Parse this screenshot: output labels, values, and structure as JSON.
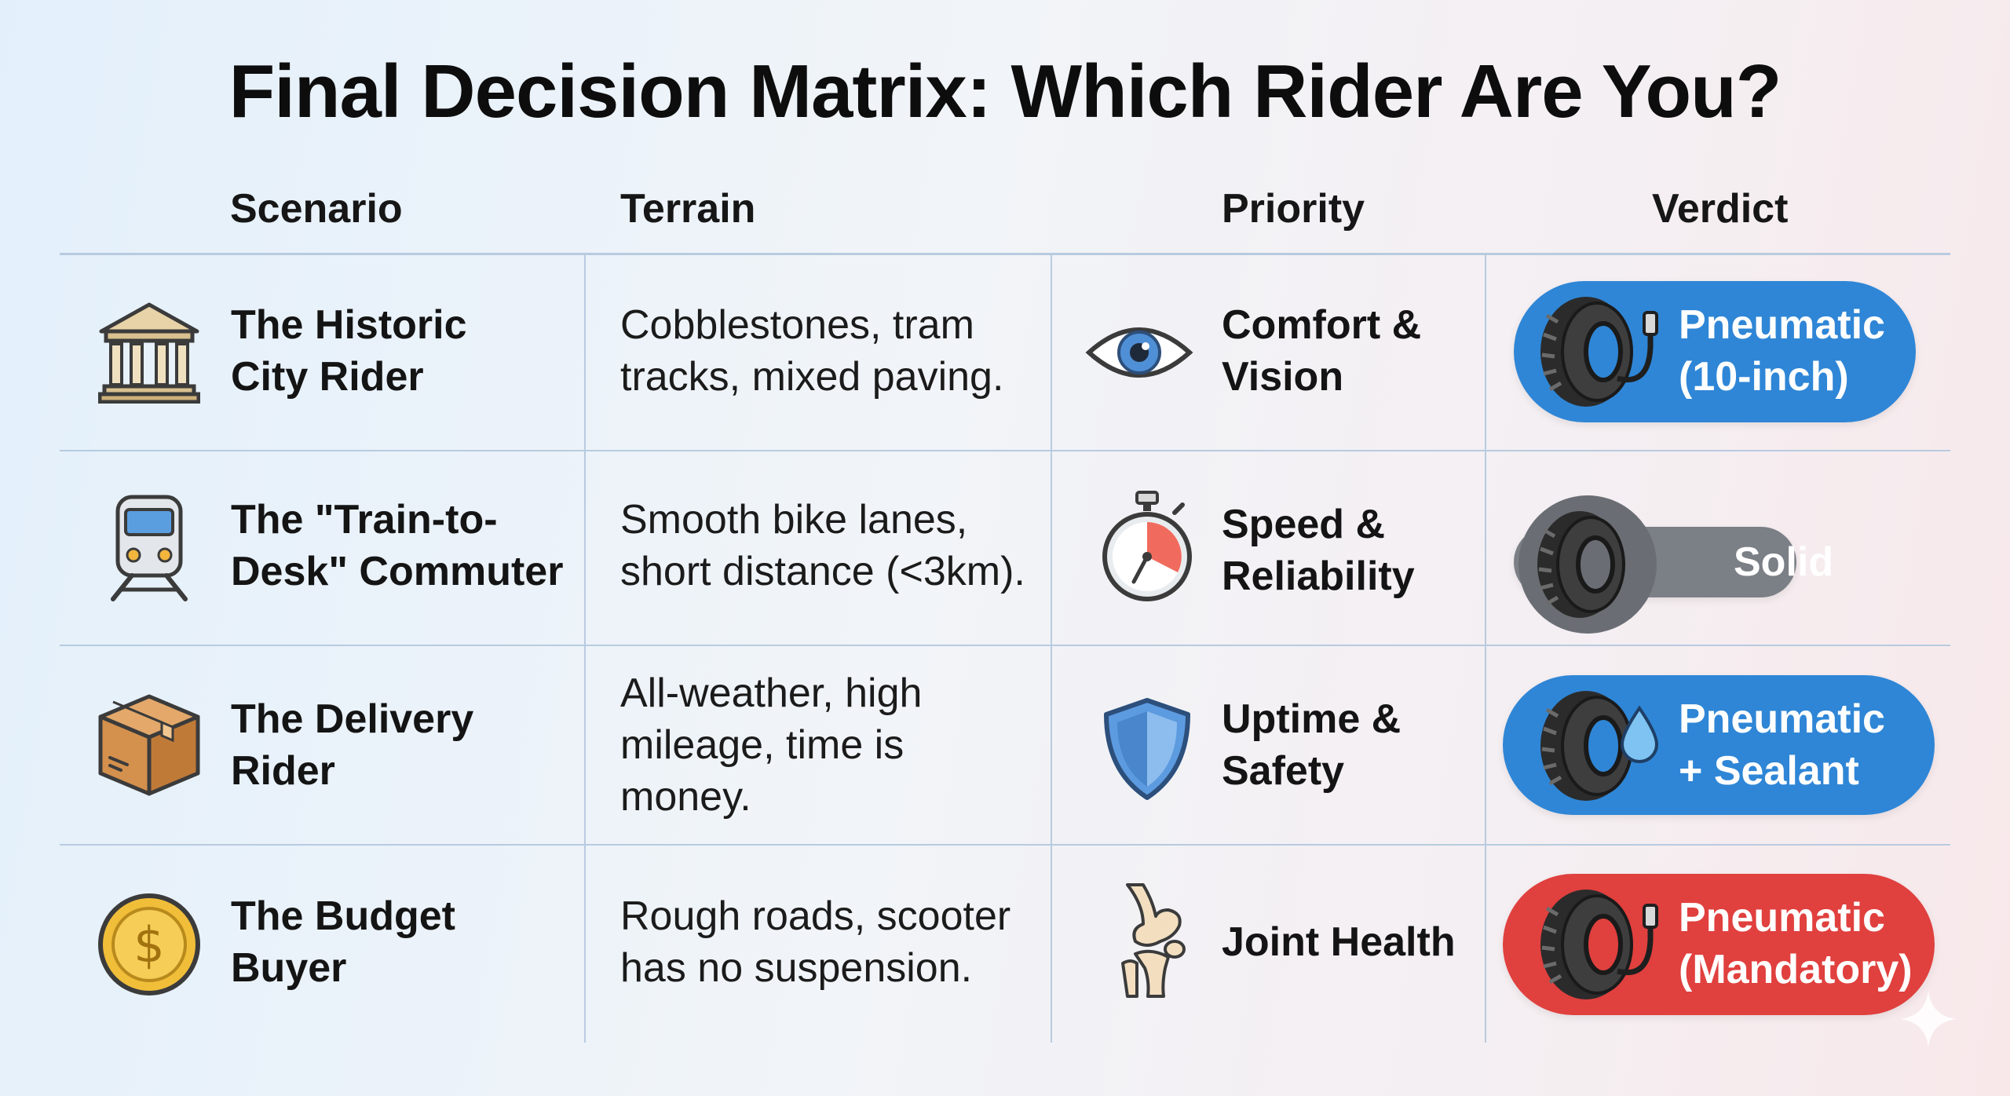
{
  "title": "Final Decision Matrix: Which Rider Are You?",
  "headers": {
    "scenario": "Scenario",
    "terrain": "Terrain",
    "priority": "Priority",
    "verdict": "Verdict"
  },
  "rows": [
    {
      "scenario": [
        "The Historic",
        "City Rider"
      ],
      "scenario_icon": "classical-building-icon",
      "terrain": [
        "Cobblestones, tram",
        "tracks, mixed paving."
      ],
      "priority": [
        "Comfort &",
        "Vision"
      ],
      "priority_icon": "eye-icon",
      "verdict": [
        "Pneumatic",
        "(10-inch)"
      ],
      "verdict_icon": "tire-with-valve-icon",
      "verdict_color": "#2f86d6"
    },
    {
      "scenario": [
        "The \"Train-to-",
        "Desk\" Commuter"
      ],
      "scenario_icon": "train-icon",
      "terrain": [
        "Smooth bike lanes,",
        "short distance (<3km)."
      ],
      "priority": [
        "Speed &",
        "Reliability"
      ],
      "priority_icon": "stopwatch-icon",
      "verdict": [
        "Solid"
      ],
      "verdict_icon": "tire-icon",
      "verdict_color": "#7b7f86"
    },
    {
      "scenario": [
        "The Delivery",
        "Rider"
      ],
      "scenario_icon": "cardboard-box-icon",
      "terrain": [
        "All-weather, high",
        "mileage, time is",
        "money."
      ],
      "priority": [
        "Uptime &",
        "Safety"
      ],
      "priority_icon": "shield-icon",
      "verdict": [
        "Pneumatic",
        "+ Sealant"
      ],
      "verdict_icon": "tire-with-droplet-icon",
      "verdict_color": "#2f86d6"
    },
    {
      "scenario": [
        "The Budget",
        "Buyer"
      ],
      "scenario_icon": "dollar-coin-icon",
      "terrain": [
        "Rough roads, scooter",
        "has no suspension."
      ],
      "priority": [
        "Joint Health"
      ],
      "priority_icon": "knee-joint-icon",
      "verdict": [
        "Pneumatic",
        "(Mandatory)"
      ],
      "verdict_icon": "tire-with-valve-icon",
      "verdict_color": "#e0403e"
    }
  ]
}
